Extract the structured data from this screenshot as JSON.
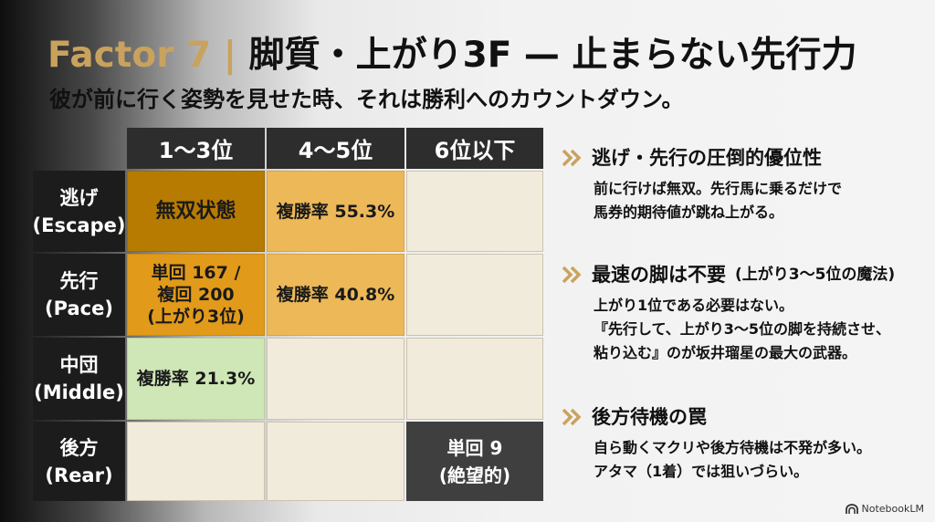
{
  "slide": {
    "title_factor": "Factor 7 |",
    "title_main": "脚質・上がり3F — 止まらない先行力",
    "subtitle": "彼が前に行く姿勢を見せた時、それは勝利へのカウントダウン。"
  },
  "table": {
    "columns": [
      "1〜3位",
      "4〜5位",
      "6位以下"
    ],
    "rows": [
      {
        "label": "逃げ",
        "label_en": "(Escape)"
      },
      {
        "label": "先行",
        "label_en": "(Pace)"
      },
      {
        "label": "中団",
        "label_en": "(Middle)"
      },
      {
        "label": "後方",
        "label_en": "(Rear)"
      }
    ],
    "cells": {
      "escape_top3": "無双状態",
      "escape_4to5": "複勝率 55.3%",
      "pace_top3": [
        "単回 167 /",
        "複回 200",
        "(上がり3位)"
      ],
      "pace_4to5": "複勝率 40.8%",
      "middle_top3": "複勝率 21.3%",
      "rear_6plus": [
        "単回 9",
        "(絶望的)"
      ]
    }
  },
  "points": [
    {
      "heading": "逃げ・先行の圧倒的優位性",
      "sub": "",
      "body": [
        "前に行けば無双。先行馬に乗るだけで",
        "馬券的期待値が跳ね上がる。"
      ]
    },
    {
      "heading": "最速の脚は不要",
      "sub": "(上がり3〜5位の魔法)",
      "body": [
        "上がり1位である必要はない。",
        "『先行して、上がり3〜5位の脚を持続させ、",
        "粘り込む』のが坂井瑠星の最大の武器。"
      ]
    },
    {
      "heading": "後方待機の罠",
      "sub": "",
      "body": [
        "自ら動くマクリや後方待機は不発が多い。",
        "アタマ（1着）では狙いづらい。"
      ]
    }
  ],
  "brand": {
    "name": "NotebookLM",
    "icon": "notebooklm-logo-icon"
  },
  "colors": {
    "accent_gold": "#c9a25e",
    "cell_dark_gold": "#b67b00",
    "cell_orange": "#e19a1a",
    "cell_amber": "#edb858",
    "cell_green": "#cfe7b7",
    "cell_empty": "#f1ebdc",
    "cell_black": "#3f3f3f",
    "chevron": "#c9a25e"
  }
}
